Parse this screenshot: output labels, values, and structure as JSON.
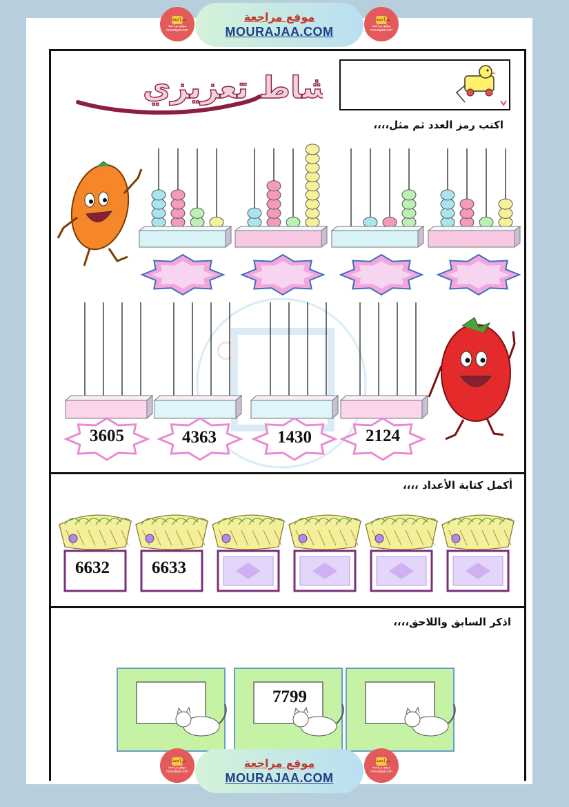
{
  "banner": {
    "arabic": "موقع مراجعة",
    "site": "MOURAJAA.COM"
  },
  "logo": {
    "badge": "مراجعة",
    "caption": "موقع مراجعة",
    "url": "mourajaa.com"
  },
  "worksheet": {
    "title": "نشاط تعزيزي",
    "section1": {
      "instruction": "اكتب رمز العدد ثم مثل،،،،",
      "abacus_numbers": [
        "3605",
        "4363",
        "1430",
        "2124"
      ]
    },
    "section2": {
      "instruction": "أكمل كتابة الأعداد  ،،،،",
      "sequence": [
        "6632",
        "6633",
        "",
        "",
        "",
        ""
      ]
    },
    "section3": {
      "instruction": "اذكر السابق واللاحق،،،،",
      "frames": [
        "",
        "7799",
        ""
      ]
    }
  },
  "colors": {
    "accent_red": "#c0392b",
    "site_blue": "#1f3f8a",
    "page_bg": "#b7cfdc",
    "star_pink": "#f2a6dd",
    "bead_pink": "#f59ab9",
    "bead_blue": "#a9e4ef",
    "bead_yellow": "#f7f29a",
    "bead_green": "#bdf0b4"
  }
}
